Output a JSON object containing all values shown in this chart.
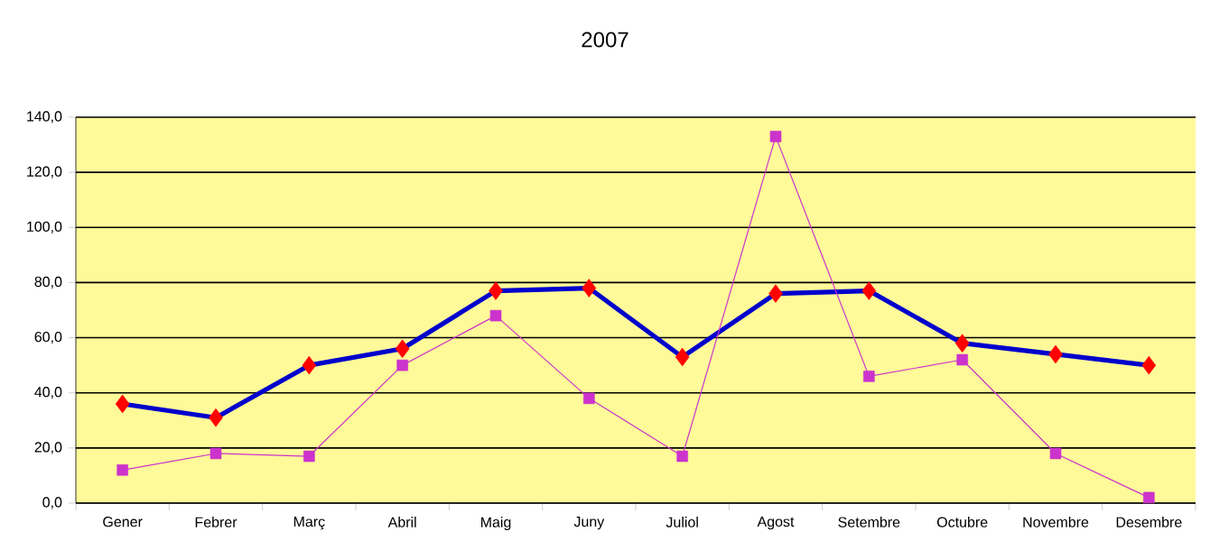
{
  "chart_data": {
    "type": "line",
    "title": "2007",
    "categories": [
      "Gener",
      "Febrer",
      "Març",
      "Abril",
      "Maig",
      "Juny",
      "Juliol",
      "Agost",
      "Setembre",
      "Octubre",
      "Novembre",
      "Desembre"
    ],
    "series": [
      {
        "color": "#0000cc",
        "marker": "diamond",
        "values": [
          36,
          31,
          50,
          56,
          77,
          78,
          53,
          76,
          77,
          58,
          54,
          50
        ]
      },
      {
        "color": "#cc33cc",
        "marker": "square",
        "values": [
          12,
          18,
          17,
          50,
          68,
          38,
          17,
          133,
          46,
          52,
          18,
          2
        ]
      }
    ],
    "ylim": [
      0,
      140
    ],
    "yticks": [
      {
        "value": 0,
        "label": "0,0"
      },
      {
        "value": 20,
        "label": "20,0"
      },
      {
        "value": 40,
        "label": "40,0"
      },
      {
        "value": 60,
        "label": "60,0"
      },
      {
        "value": 80,
        "label": "80,0"
      },
      {
        "value": 100,
        "label": "100,0"
      },
      {
        "value": 120,
        "label": "120,0"
      },
      {
        "value": 140,
        "label": "140,0"
      }
    ],
    "grid": "y"
  }
}
